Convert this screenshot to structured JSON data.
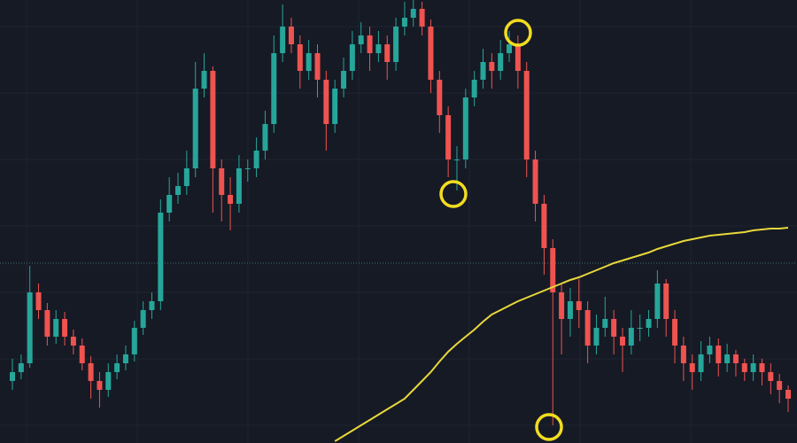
{
  "chart_data": {
    "type": "candlestick",
    "ylim": [
      0,
      500
    ],
    "up_color": "#26a69a",
    "down_color": "#ef5350",
    "open": [
      70,
      80,
      90,
      170,
      150,
      120,
      140,
      120,
      110,
      90,
      70,
      60,
      80,
      90,
      100,
      130,
      150,
      160,
      260,
      280,
      290,
      310,
      400,
      420,
      310,
      280,
      270,
      310,
      310,
      330,
      360,
      440,
      470,
      450,
      420,
      440,
      410,
      360,
      400,
      420,
      450,
      460,
      440,
      450,
      430,
      470,
      480,
      490,
      470,
      410,
      370,
      320,
      320,
      390,
      410,
      430,
      420,
      440,
      450,
      420,
      320,
      270,
      220,
      170,
      140,
      160,
      150,
      110,
      130,
      140,
      120,
      110,
      130,
      130,
      140,
      180,
      140,
      110,
      90,
      80,
      100,
      110,
      90,
      100,
      90,
      80,
      90,
      80,
      70,
      60
    ],
    "high": [
      95,
      100,
      200,
      180,
      158,
      150,
      148,
      128,
      118,
      98,
      80,
      90,
      100,
      110,
      138,
      160,
      170,
      275,
      300,
      305,
      330,
      430,
      440,
      425,
      320,
      300,
      325,
      320,
      345,
      375,
      460,
      495,
      480,
      460,
      455,
      450,
      420,
      410,
      435,
      465,
      475,
      470,
      465,
      460,
      480,
      498,
      500,
      498,
      478,
      420,
      380,
      335,
      400,
      420,
      445,
      440,
      455,
      465,
      460,
      430,
      330,
      280,
      230,
      180,
      175,
      185,
      160,
      145,
      165,
      150,
      130,
      150,
      145,
      150,
      195,
      185,
      150,
      120,
      100,
      115,
      120,
      118,
      112,
      105,
      95,
      100,
      95,
      90,
      78,
      65
    ],
    "low": [
      60,
      72,
      85,
      140,
      110,
      112,
      110,
      100,
      82,
      50,
      40,
      52,
      72,
      82,
      92,
      122,
      140,
      150,
      250,
      270,
      280,
      300,
      390,
      260,
      250,
      240,
      260,
      295,
      300,
      320,
      350,
      430,
      440,
      400,
      410,
      390,
      330,
      350,
      390,
      410,
      440,
      420,
      430,
      410,
      420,
      460,
      470,
      460,
      395,
      350,
      300,
      285,
      310,
      380,
      400,
      400,
      410,
      430,
      400,
      300,
      250,
      190,
      20,
      100,
      120,
      130,
      90,
      100,
      120,
      100,
      80,
      100,
      115,
      120,
      130,
      120,
      90,
      70,
      60,
      70,
      90,
      75,
      80,
      75,
      70,
      70,
      65,
      55,
      45,
      35
    ],
    "close": [
      80,
      90,
      170,
      150,
      120,
      140,
      120,
      110,
      90,
      70,
      60,
      80,
      90,
      100,
      130,
      150,
      160,
      260,
      280,
      290,
      310,
      400,
      420,
      310,
      280,
      270,
      310,
      310,
      330,
      360,
      440,
      470,
      450,
      420,
      440,
      410,
      360,
      400,
      420,
      450,
      460,
      440,
      450,
      430,
      470,
      480,
      490,
      470,
      410,
      370,
      320,
      320,
      390,
      410,
      430,
      420,
      440,
      450,
      420,
      320,
      270,
      220,
      170,
      140,
      160,
      150,
      110,
      130,
      140,
      120,
      110,
      130,
      130,
      140,
      180,
      140,
      110,
      90,
      80,
      100,
      110,
      90,
      100,
      90,
      80,
      90,
      80,
      70,
      60,
      50
    ],
    "moving_average": {
      "color": "#e8d83a",
      "values": [
        null,
        null,
        null,
        null,
        null,
        null,
        null,
        null,
        null,
        null,
        null,
        null,
        null,
        null,
        null,
        null,
        null,
        null,
        null,
        null,
        null,
        null,
        null,
        null,
        null,
        null,
        null,
        null,
        null,
        null,
        null,
        null,
        null,
        null,
        null,
        null,
        null,
        2,
        8,
        14,
        20,
        26,
        32,
        38,
        44,
        50,
        60,
        70,
        80,
        92,
        103,
        112,
        120,
        128,
        137,
        145,
        150,
        155,
        160,
        164,
        168,
        172,
        176,
        180,
        184,
        187,
        191,
        195,
        199,
        203,
        206,
        209,
        212,
        215,
        219,
        222,
        225,
        228,
        230,
        232,
        234,
        235,
        236,
        237,
        238,
        240,
        241,
        242,
        242,
        243
      ]
    },
    "price_line": 203
  }
}
